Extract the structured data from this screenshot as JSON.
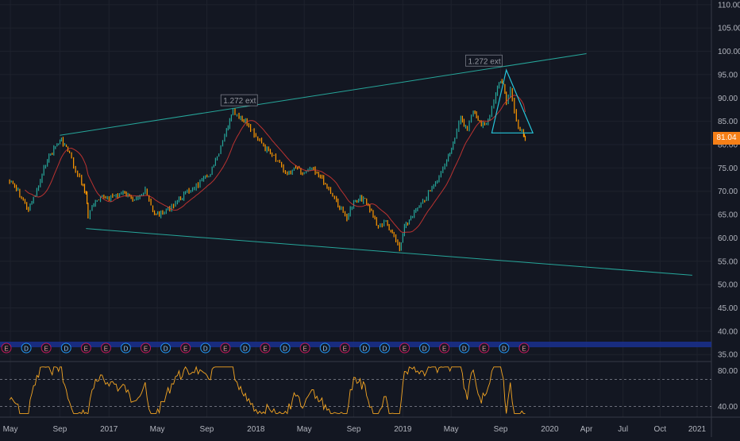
{
  "chart_data": [
    {
      "type": "candlestick",
      "panel": "price",
      "x_axis_ticks": [
        "May",
        "Sep",
        "2017",
        "May",
        "Sep",
        "2018",
        "May",
        "Sep",
        "2019",
        "May",
        "Sep",
        "2020",
        "Apr",
        "Jul",
        "Oct",
        "2021"
      ],
      "y_axis_ticks": [
        "110.00",
        "105.00",
        "100.00",
        "95.00",
        "90.00",
        "85.00",
        "80.00",
        "75.00",
        "70.00",
        "65.00",
        "60.00",
        "55.00",
        "50.00",
        "45.00",
        "40.00",
        "35.00"
      ],
      "ylim": [
        33.5,
        111
      ],
      "last_price": "81.04",
      "price_path": [
        [
          "2016-04-25",
          72.5
        ],
        [
          "2016-05-20",
          70.0
        ],
        [
          "2016-06-15",
          66.0
        ],
        [
          "2016-07-10",
          71.0
        ],
        [
          "2016-08-01",
          77.0
        ],
        [
          "2016-08-25",
          80.0
        ],
        [
          "2016-09-05",
          81.0
        ],
        [
          "2016-09-25",
          78.0
        ],
        [
          "2016-10-10",
          74.0
        ],
        [
          "2016-10-25",
          72.0
        ],
        [
          "2016-11-05",
          69.5
        ],
        [
          "2016-11-10",
          64.5
        ],
        [
          "2016-11-20",
          67.0
        ],
        [
          "2016-12-15",
          68.5
        ],
        [
          "2017-01-10",
          69.0
        ],
        [
          "2017-02-05",
          69.5
        ],
        [
          "2017-03-01",
          68.5
        ],
        [
          "2017-04-01",
          70.0
        ],
        [
          "2017-04-20",
          65.5
        ],
        [
          "2017-05-10",
          65.0
        ],
        [
          "2017-06-01",
          66.5
        ],
        [
          "2017-06-20",
          68.0
        ],
        [
          "2017-07-10",
          69.5
        ],
        [
          "2017-08-01",
          71.0
        ],
        [
          "2017-08-20",
          72.0
        ],
        [
          "2017-09-10",
          74.0
        ],
        [
          "2017-10-01",
          78.0
        ],
        [
          "2017-10-20",
          83.0
        ],
        [
          "2017-11-05",
          87.0
        ],
        [
          "2017-11-20",
          85.5
        ],
        [
          "2017-12-10",
          84.5
        ],
        [
          "2018-01-01",
          82.0
        ],
        [
          "2018-01-20",
          79.5
        ],
        [
          "2018-02-10",
          77.5
        ],
        [
          "2018-03-01",
          76.0
        ],
        [
          "2018-03-20",
          73.5
        ],
        [
          "2018-04-10",
          75.5
        ],
        [
          "2018-05-01",
          74.0
        ],
        [
          "2018-05-20",
          75.5
        ],
        [
          "2018-06-10",
          73.0
        ],
        [
          "2018-07-01",
          70.5
        ],
        [
          "2018-07-20",
          68.0
        ],
        [
          "2018-08-01",
          66.0
        ],
        [
          "2018-08-15",
          64.5
        ],
        [
          "2018-09-01",
          67.5
        ],
        [
          "2018-09-25",
          68.5
        ],
        [
          "2018-10-15",
          65.5
        ],
        [
          "2018-11-01",
          62.5
        ],
        [
          "2018-11-20",
          63.5
        ],
        [
          "2018-12-10",
          60.0
        ],
        [
          "2018-12-24",
          57.5
        ],
        [
          "2019-01-05",
          62.0
        ],
        [
          "2019-01-25",
          65.0
        ],
        [
          "2019-02-15",
          67.0
        ],
        [
          "2019-03-10",
          70.0
        ],
        [
          "2019-04-01",
          73.0
        ],
        [
          "2019-04-20",
          77.0
        ],
        [
          "2019-05-10",
          81.0
        ],
        [
          "2019-05-25",
          86.0
        ],
        [
          "2019-06-10",
          83.0
        ],
        [
          "2019-06-25",
          87.5
        ],
        [
          "2019-07-15",
          84.0
        ],
        [
          "2019-08-05",
          86.0
        ],
        [
          "2019-08-20",
          91.0
        ],
        [
          "2019-09-01",
          94.0
        ],
        [
          "2019-09-08",
          93.0
        ],
        [
          "2019-09-15",
          89.0
        ],
        [
          "2019-09-25",
          91.5
        ],
        [
          "2019-10-05",
          87.0
        ],
        [
          "2019-10-15",
          84.0
        ],
        [
          "2019-10-28",
          82.5
        ],
        [
          "2019-11-01",
          81.0
        ]
      ],
      "drawings": {
        "upper_channel": [
          [
            "2016-09-01",
            82.0
          ],
          [
            "2020-04-01",
            99.5
          ]
        ],
        "lower_channel": [
          [
            "2016-11-05",
            62.0
          ],
          [
            "2020-12-20",
            52.0
          ]
        ],
        "triangle": [
          [
            "2019-08-10",
            82.5
          ],
          [
            "2019-09-15",
            96.0
          ],
          [
            "2019-11-20",
            82.5
          ]
        ],
        "ext_label_1": {
          "text": "1.272 ext",
          "x": "2017-10-10",
          "y": 89.0
        },
        "ext_label_2": {
          "text": "1.272 ext",
          "x": "2019-06-10",
          "y": 97.5
        }
      },
      "earnings_markers": [
        "E",
        "D",
        "E",
        "D",
        "E",
        "E",
        "D",
        "E",
        "D",
        "E",
        "D",
        "E",
        "D",
        "E",
        "D",
        "E",
        "D",
        "E",
        "D",
        "D",
        "E",
        "D",
        "E",
        "D",
        "E",
        "D",
        "E"
      ]
    },
    {
      "type": "line",
      "panel": "rsi",
      "y_axis_ticks": [
        "80.00",
        "40.00"
      ],
      "ylim": [
        28,
        90
      ],
      "reference_levels": [
        70,
        40
      ],
      "series_color": "#f5a623"
    }
  ]
}
